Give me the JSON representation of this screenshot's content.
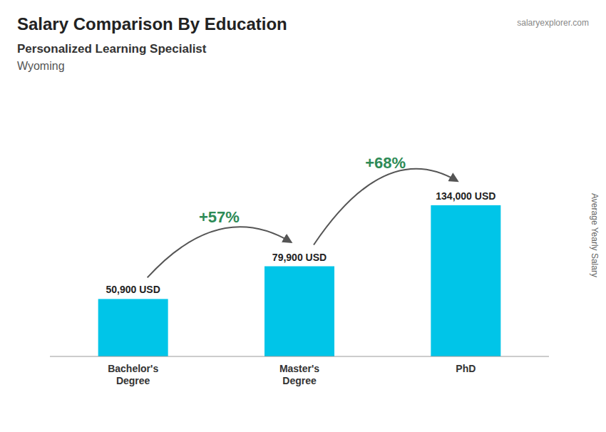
{
  "chart_data": {
    "type": "bar",
    "title": "Salary Comparison By Education",
    "subtitle": [
      "Personalized Learning Specialist",
      "Wyoming"
    ],
    "watermark": "salaryexplorer.com",
    "ylabel": "Average Yearly Salary",
    "categories": [
      "Bachelor's\nDegree",
      "Master's\nDegree",
      "PhD"
    ],
    "values": [
      50900,
      79900,
      134000
    ],
    "value_labels": [
      "50,900 USD",
      "79,900 USD",
      "134,000 USD"
    ],
    "data_labels": true,
    "annotations": [
      "+57%",
      "+68%"
    ],
    "color": "#00C5E8",
    "ylim": [
      0,
      221100
    ],
    "tick_labels": false,
    "grid": false
  }
}
